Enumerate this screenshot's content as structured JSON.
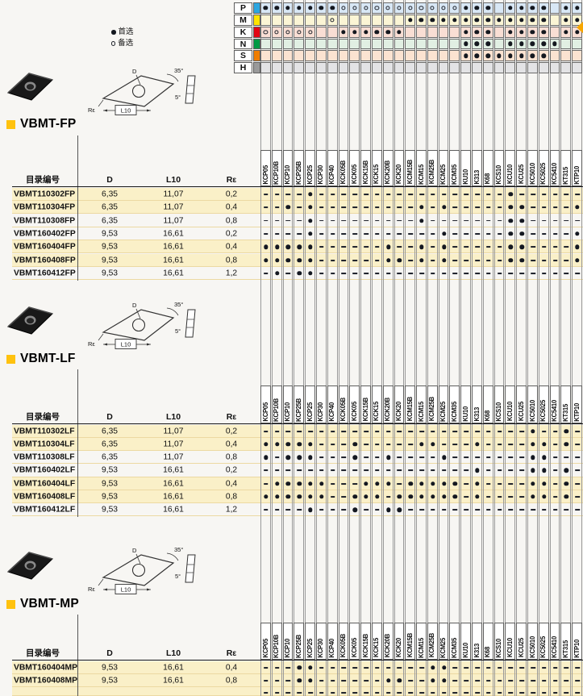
{
  "legend": {
    "first_choice_label": "首选",
    "alternate_label": "备选"
  },
  "grades": [
    "KCP05",
    "KCP10B",
    "KCP10",
    "KCP25B",
    "KCP25",
    "KCP30",
    "KCP40",
    "KCK05B",
    "KCK05",
    "KCK15B",
    "KCK15",
    "KCK20B",
    "KCK20",
    "KCM15B",
    "KCM15",
    "KCM25B",
    "KCM25",
    "KCM35",
    "KU10",
    "K313",
    "K68",
    "KCS10",
    "KCU10",
    "KCU25",
    "KC5010",
    "KC5025",
    "KC5410",
    "KT315",
    "KTP10"
  ],
  "iso_chart": {
    "rows": [
      {
        "label": "P",
        "square": "#2ba6e0",
        "bg": "#d8e7f5",
        "marks": "FFFFFFFOOOOOOOOOOOFFF.FFFF.FF"
      },
      {
        "label": "M",
        "square": "#ffe400",
        "bg": "#fbf5d5",
        "marks": "......O......FFFFFFFFFFFFF.FF"
      },
      {
        "label": "K",
        "square": "#e30613",
        "bg": "#f9ded4",
        "marks": "OOOOO..FFFFFF.....FFF.FFFF.FF"
      },
      {
        "label": "N",
        "square": "#009a44",
        "bg": "#e1efe3",
        "marks": "..................FFF.FFFFF.."
      },
      {
        "label": "S",
        "square": "#ef7d00",
        "bg": "#fbe3d1",
        "marks": "..................FFFFFFFF..."
      },
      {
        "label": "H",
        "square": "#9a9a9a",
        "bg": "#e3e3e5",
        "marks": "............................."
      }
    ]
  },
  "drawing": {
    "d_label": "D",
    "length_label": "L10",
    "radius_label": "Rε",
    "nose_angle_label": "35°",
    "clearance_angle_label": "5°"
  },
  "sections": [
    {
      "title": "VBMT-FP",
      "table": {
        "headers": [
          "目录编号",
          "D",
          "L10",
          "Rε"
        ],
        "rows": [
          {
            "cat": "VBMT110302FP",
            "d": "6,35",
            "l10": "11,07",
            "re": "0,2",
            "hl": true,
            "marks": "----F-----------------F------"
          },
          {
            "cat": "VBMT110304FP",
            "d": "6,35",
            "l10": "11,07",
            "re": "0,4",
            "hl": true,
            "marks": "--F-F---------F-F-----FF----F"
          },
          {
            "cat": "VBMT110308FP",
            "d": "6,35",
            "l10": "11,07",
            "re": "0,8",
            "hl": false,
            "marks": "----F---------F-------FF-----"
          },
          {
            "cat": "VBMT160402FP",
            "d": "9,53",
            "l10": "16,61",
            "re": "0,2",
            "hl": false,
            "marks": "----F-----------F-----FF----F"
          },
          {
            "cat": "VBMT160404FP",
            "d": "9,53",
            "l10": "16,61",
            "re": "0,4",
            "hl": true,
            "marks": "FFFFF------F--F-F-----FF----F"
          },
          {
            "cat": "VBMT160408FP",
            "d": "9,53",
            "l10": "16,61",
            "re": "0,8",
            "hl": true,
            "marks": "FFFFF------FF-F-F-----FF----F"
          },
          {
            "cat": "VBMT160412FP",
            "d": "9,53",
            "l10": "16,61",
            "re": "1,2",
            "hl": false,
            "marks": "-F-FF------------------------"
          }
        ]
      }
    },
    {
      "title": "VBMT-LF",
      "table": {
        "headers": [
          "目录编号",
          "D",
          "L10",
          "Rε"
        ],
        "rows": [
          {
            "cat": "VBMT110302LF",
            "d": "6,35",
            "l10": "11,07",
            "re": "0,2",
            "hl": true,
            "marks": "------------------------F--F-"
          },
          {
            "cat": "VBMT110304LF",
            "d": "6,35",
            "l10": "11,07",
            "re": "0,4",
            "hl": true,
            "marks": "FFFFF---F-----FF---F----FF-F-"
          },
          {
            "cat": "VBMT110308LF",
            "d": "6,35",
            "l10": "11,07",
            "re": "0,8",
            "hl": false,
            "marks": "F-FFF---F--F----F-------FF---"
          },
          {
            "cat": "VBMT160402LF",
            "d": "9,53",
            "l10": "16,61",
            "re": "0,2",
            "hl": false,
            "marks": "-------------------F----FF-F-"
          },
          {
            "cat": "VBMT160404LF",
            "d": "9,53",
            "l10": "16,61",
            "re": "0,4",
            "hl": true,
            "marks": "-FFFFF---FFF-FFFFF-F----FF-F-"
          },
          {
            "cat": "VBMT160408LF",
            "d": "9,53",
            "l10": "16,61",
            "re": "0,8",
            "hl": true,
            "marks": "FFFFFF--FFF-FFFFFF-F----FF-F-"
          },
          {
            "cat": "VBMT160412LF",
            "d": "9,53",
            "l10": "16,61",
            "re": "1,2",
            "hl": false,
            "marks": "----F---F--FF----------------"
          }
        ]
      }
    },
    {
      "title": "VBMT-MP",
      "table": {
        "headers": [
          "目录编号",
          "D",
          "L10",
          "Rε"
        ],
        "rows": [
          {
            "cat": "VBMT160404MP",
            "d": "9,53",
            "l10": "16,61",
            "re": "0,4",
            "hl": true,
            "marks": "---FF----------FF------------"
          },
          {
            "cat": "VBMT160408MP",
            "d": "9,53",
            "l10": "16,61",
            "re": "0,8",
            "hl": true,
            "marks": "---FF------FF--FF------------"
          }
        ]
      }
    }
  ]
}
